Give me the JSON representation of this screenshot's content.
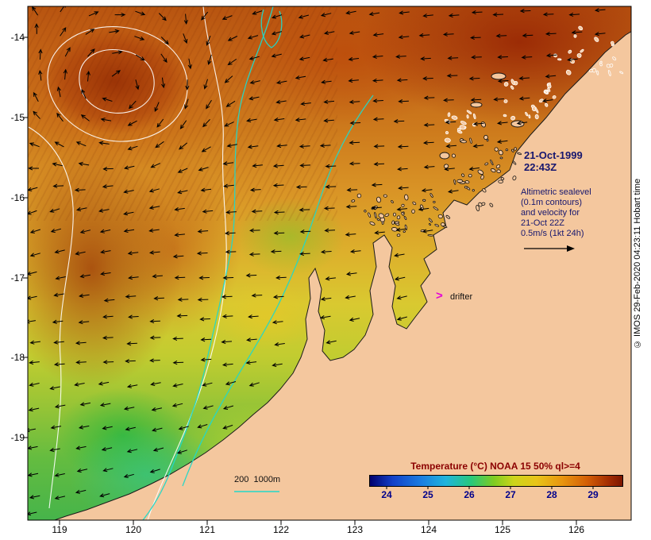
{
  "map": {
    "date": [
      "21-Oct-1999",
      "22:43Z"
    ],
    "annotation": [
      "Altimetric sealevel",
      "(0.1m contours)",
      "and velocity for",
      "21-Oct 22Z",
      "0.5m/s (1kt 24h)"
    ],
    "drifter_marker": ">",
    "drifter_label": "drifter",
    "bathy_scale_label": "200  1000m",
    "copyright": "© IMOS 29-Feb-2020 04:23:11 Hobart time"
  },
  "colorbar": {
    "title": "Temperature (°C) NOAA 15 50% ql>=4",
    "tick_labels": [
      "24",
      "25",
      "26",
      "27",
      "28",
      "29"
    ],
    "title_color": "#8b0000",
    "tick_color": "#00008b",
    "gradient": [
      "#00006e 0%",
      "#1240c8 9%",
      "#1a7ce0 20%",
      "#20b4dc 30%",
      "#28c87c 40%",
      "#7ecc22 49%",
      "#cdd51a 57%",
      "#e8c418 66%",
      "#e89610 76%",
      "#d45f06 86%",
      "#a02a02 95%",
      "#7c1600 100%"
    ]
  },
  "axes": {
    "x_tick_labels": [
      "119",
      "120",
      "121",
      "122",
      "123",
      "124",
      "125",
      "126"
    ],
    "y_tick_labels": [
      "-14",
      "-15",
      "-16",
      "-17",
      "-18",
      "-19"
    ]
  },
  "colors": {
    "land": "#f4c79e",
    "coastline": "#1a1a1a",
    "arrow": "#000000",
    "bathy_contour": "#22d8c8",
    "sealevel_contour": "#ffffff",
    "drifter": "#e400d6",
    "annotation_text": "#16166e",
    "frame": "#000000"
  }
}
